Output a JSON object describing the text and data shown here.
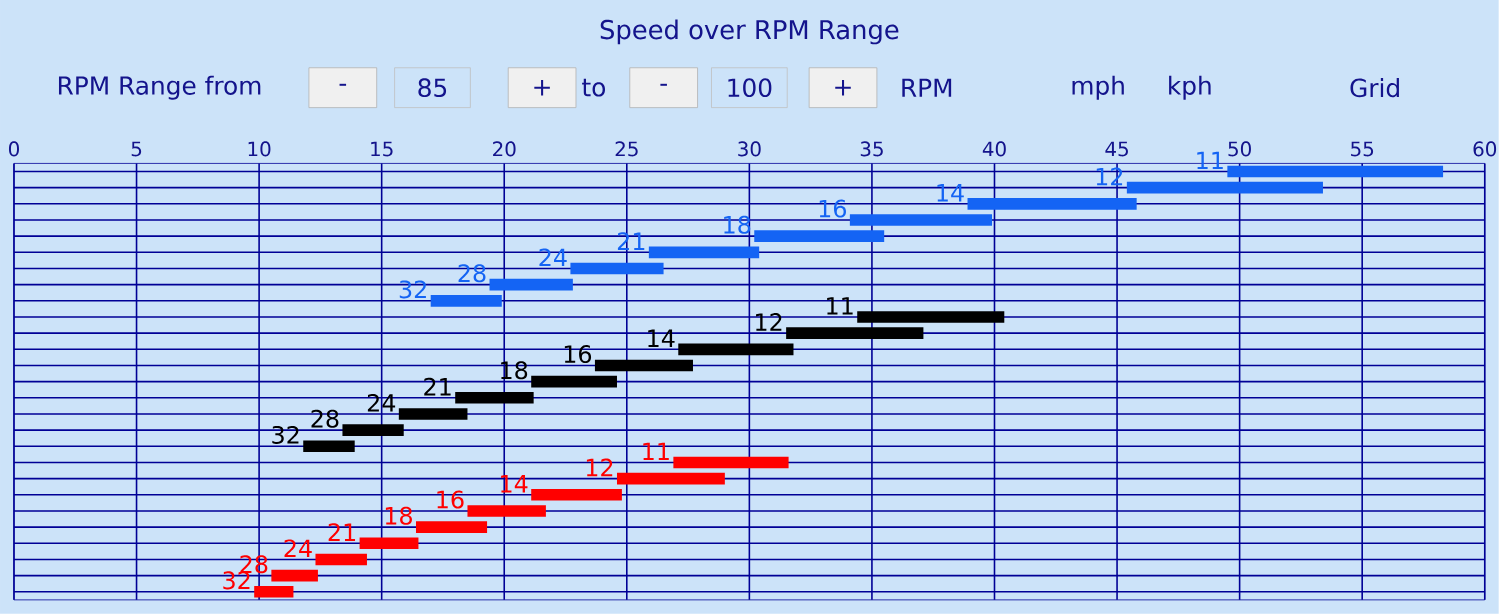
{
  "chart_data": {
    "type": "bar",
    "orientation": "horizontal",
    "title": "Speed over RPM Range",
    "annotations": [
      "RPM Range from",
      "-",
      "85",
      "+",
      "to",
      "-",
      "100",
      "+",
      "RPM",
      "mph",
      "kph",
      "Grid",
      {
        "text": "11",
        "x": 49.5
      },
      {
        "text": "12",
        "x": 45.4
      },
      {
        "text": "14",
        "x": 38.9
      },
      {
        "text": "16",
        "x": 34.1
      },
      {
        "text": "18",
        "x": 30.2
      },
      {
        "text": "21",
        "x": 25.9
      },
      {
        "text": "24",
        "x": 22.7
      },
      {
        "text": "28",
        "x": 19.4
      },
      {
        "text": "32",
        "x": 17.0
      },
      {
        "text": "11",
        "x": 34.4
      },
      {
        "text": "12",
        "x": 31.5
      },
      {
        "text": "14",
        "x": 27.1
      },
      {
        "text": "16",
        "x": 23.7
      },
      {
        "text": "18",
        "x": 21.1
      },
      {
        "text": "21",
        "x": 18.0
      },
      {
        "text": "24",
        "x": 15.7
      },
      {
        "text": "28",
        "x": 13.4
      },
      {
        "text": "32",
        "x": 11.8
      },
      {
        "text": "11",
        "x": 26.9
      },
      {
        "text": "12",
        "x": 24.6
      },
      {
        "text": "14",
        "x": 21.1
      },
      {
        "text": "16",
        "x": 18.5
      },
      {
        "text": "18",
        "x": 16.4
      },
      {
        "text": "21",
        "x": 14.1
      },
      {
        "text": "24",
        "x": 12.3
      },
      {
        "text": "28",
        "x": 10.5
      },
      {
        "text": "32",
        "x": 9.8
      }
    ],
    "categories": [
      null,
      null,
      null,
      null,
      null,
      null,
      null,
      null,
      null,
      null,
      null,
      null,
      null,
      null,
      null,
      null,
      null,
      null,
      null,
      null,
      null,
      null,
      null,
      null,
      null,
      null,
      null
    ],
    "base": [
      49.5,
      45.4,
      38.9,
      34.1,
      30.2,
      25.9,
      22.7,
      19.4,
      17.0,
      34.4,
      31.5,
      27.1,
      23.7,
      21.1,
      18.0,
      15.7,
      13.4,
      11.8,
      26.9,
      24.6,
      21.1,
      18.5,
      16.4,
      14.1,
      12.3,
      10.5,
      9.8
    ],
    "values": [
      8.8,
      8.0,
      6.9,
      5.8,
      5.3,
      4.5,
      3.8,
      3.4,
      2.9,
      6.0,
      5.6,
      4.7,
      4.0,
      3.5,
      3.2,
      2.8,
      2.5,
      2.1,
      4.7,
      4.4,
      3.7,
      3.2,
      2.9,
      2.4,
      2.1,
      1.9,
      1.6
    ],
    "colors": [
      "#1464f4",
      "#1464f4",
      "#1464f4",
      "#1464f4",
      "#1464f4",
      "#1464f4",
      "#1464f4",
      "#1464f4",
      "#1464f4",
      "#000000",
      "#000000",
      "#000000",
      "#000000",
      "#000000",
      "#000000",
      "#000000",
      "#000000",
      "#000000",
      "#ff0000",
      "#ff0000",
      "#ff0000",
      "#ff0000",
      "#ff0000",
      "#ff0000",
      "#ff0000",
      "#ff0000",
      "#ff0000"
    ],
    "xlim": [
      0,
      60
    ],
    "xticks": [
      0,
      5,
      10,
      15,
      20,
      25,
      30,
      35,
      40,
      45,
      50,
      55,
      60
    ],
    "grid": true
  }
}
